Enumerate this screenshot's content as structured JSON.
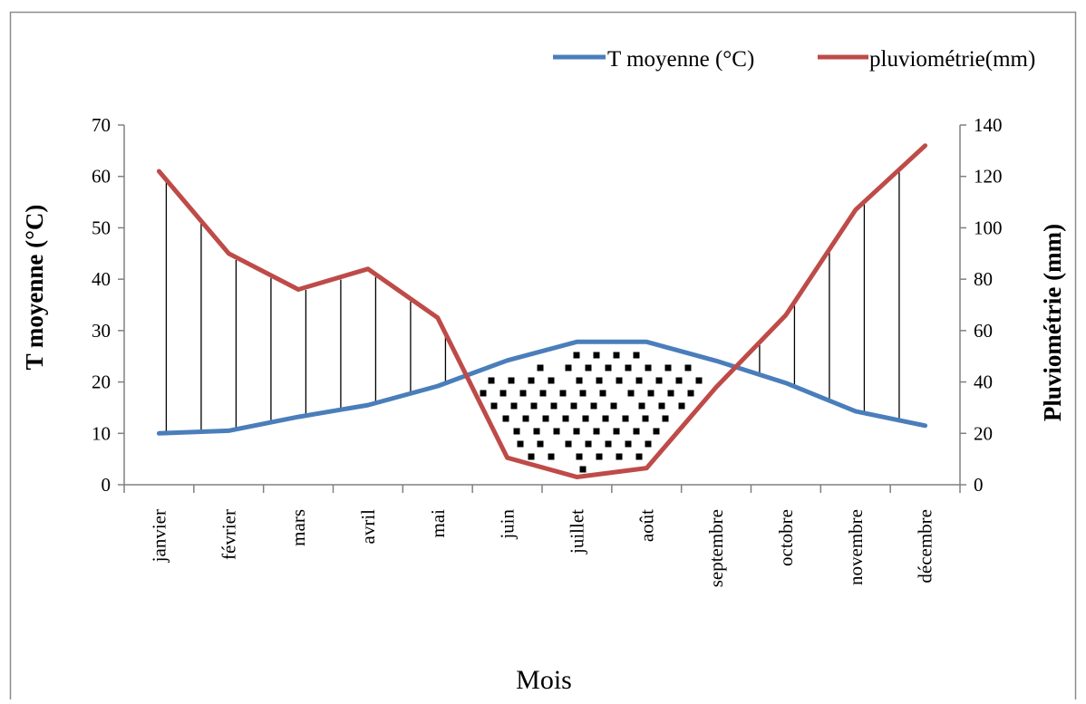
{
  "chart_data": {
    "type": "line",
    "xlabel": "Mois",
    "ylabel": "T moyenne (°C)",
    "y2label": "Pluviométrie (mm)",
    "categories": [
      "janvier",
      "février",
      "mars",
      "avril",
      "mai",
      "juin",
      "juillet",
      "août",
      "septembre",
      "octobre",
      "novembre",
      "décembre"
    ],
    "ylim": [
      0,
      70
    ],
    "y2lim": [
      0,
      140
    ],
    "yticks": [
      0,
      10,
      20,
      30,
      40,
      50,
      60,
      70
    ],
    "y2ticks": [
      0,
      20,
      40,
      60,
      80,
      100,
      120,
      140
    ],
    "legend_position": "top-right",
    "grid": false,
    "series": [
      {
        "name": "T moyenne (°C)",
        "axis": "left",
        "color": "#4a7ebb",
        "values": [
          10,
          10.5,
          13.2,
          15.5,
          19.2,
          24.2,
          27.8,
          27.8,
          24.1,
          19.8,
          14.3,
          11.5
        ]
      },
      {
        "name": "pluviométrie(mm)",
        "axis": "right",
        "color": "#be4b48",
        "values": [
          122,
          90,
          76,
          84,
          65,
          10.5,
          3,
          6.5,
          38,
          66,
          107,
          132
        ]
      }
    ]
  }
}
